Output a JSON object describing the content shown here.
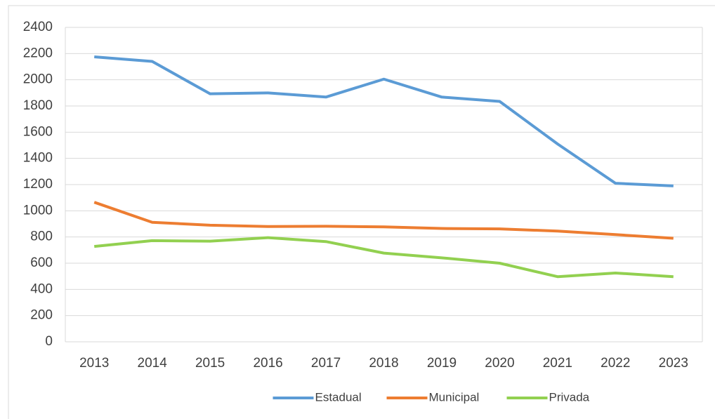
{
  "chart_data": {
    "type": "line",
    "categories": [
      "2013",
      "2014",
      "2015",
      "2016",
      "2017",
      "2018",
      "2019",
      "2020",
      "2021",
      "2022",
      "2023"
    ],
    "series": [
      {
        "name": "Estadual",
        "color": "#5b9bd5",
        "values": [
          2175,
          2140,
          1893,
          1900,
          1868,
          2005,
          1868,
          1835,
          1510,
          1210,
          1190
        ]
      },
      {
        "name": "Municipal",
        "color": "#ed7d31",
        "values": [
          1065,
          912,
          890,
          880,
          882,
          877,
          865,
          862,
          845,
          818,
          790
        ]
      },
      {
        "name": "Privada",
        "color": "#92d050",
        "values": [
          728,
          772,
          768,
          795,
          765,
          677,
          641,
          600,
          497,
          525,
          497
        ]
      }
    ],
    "ylim": [
      0,
      2400
    ],
    "yticks": [
      0,
      200,
      400,
      600,
      800,
      1000,
      1200,
      1400,
      1600,
      1800,
      2000,
      2200,
      2400
    ],
    "grid": true,
    "legend": "bottom"
  }
}
